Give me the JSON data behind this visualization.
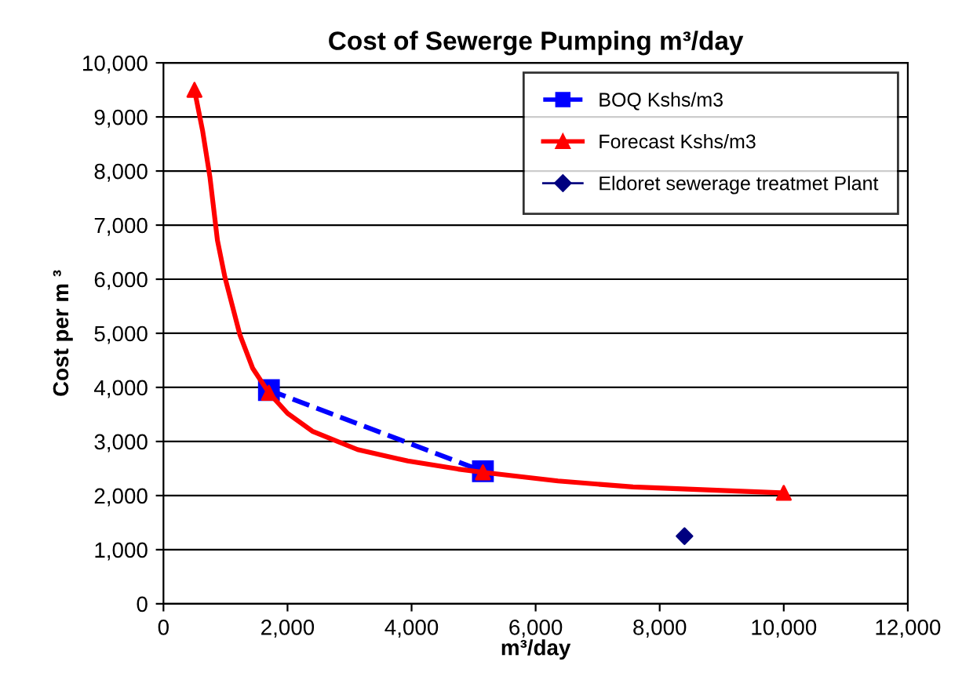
{
  "chart_data": {
    "type": "line",
    "title": "Cost of Sewerge Pumping m³/day",
    "xlabel": "m³/day",
    "ylabel": "Cost per m ³",
    "xlim": [
      0,
      12000
    ],
    "xticks": [
      0,
      {
        "value": 2000,
        "label": "2,000"
      },
      {
        "value": 4000,
        "label": "4,000"
      },
      {
        "value": 6000,
        "label": "6,000"
      },
      {
        "value": 8000,
        "label": "8,000"
      },
      {
        "value": 10000,
        "label": "10,000"
      },
      {
        "value": 12000,
        "label": "12,000"
      }
    ],
    "ylim": [
      0,
      10000
    ],
    "yticks": [
      0,
      {
        "value": 1000,
        "label": "1,000"
      },
      {
        "value": 2000,
        "label": "2,000"
      },
      {
        "value": 3000,
        "label": "3,000"
      },
      {
        "value": 4000,
        "label": "4,000"
      },
      {
        "value": 5000,
        "label": "5,000"
      },
      {
        "value": 6000,
        "label": "6,000"
      },
      {
        "value": 7000,
        "label": "7,000"
      },
      {
        "value": 8000,
        "label": "8,000"
      },
      {
        "value": 9000,
        "label": "9,000"
      },
      {
        "value": 10000,
        "label": "10,000"
      }
    ],
    "grid": "y",
    "legend": "top right",
    "series": [
      {
        "name": "BOQ Kshs/m3",
        "color": "#0000ff",
        "x": [
          1700,
          5150
        ],
        "values": [
          3950,
          2450
        ],
        "marker": "square",
        "line_style": "dashed"
      },
      {
        "name": "Forecast Kshs/m3",
        "color": "#ff0000",
        "x": [
          500,
          630,
          750,
          870,
          990,
          1230,
          1440,
          1700,
          2000,
          2400,
          3130,
          3940,
          4750,
          5150,
          6360,
          7570,
          10000
        ],
        "values": [
          9500,
          8750,
          7880,
          6720,
          6040,
          4980,
          4350,
          3900,
          3520,
          3190,
          2850,
          2640,
          2490,
          2430,
          2270,
          2160,
          2050
        ],
        "marker": "none",
        "line_style": "solid"
      },
      {
        "type": "scatter",
        "color": "#ff0000",
        "x": [
          500,
          1700,
          5150,
          10000
        ],
        "values": [
          9500,
          3900,
          2430,
          2050
        ],
        "marker": "triangle"
      },
      {
        "name": "Eldoret sewerage treatmet Plant",
        "type": "scatter",
        "color": "#000080",
        "x": [
          8400
        ],
        "values": [
          1250
        ],
        "marker": "diamond"
      }
    ]
  }
}
